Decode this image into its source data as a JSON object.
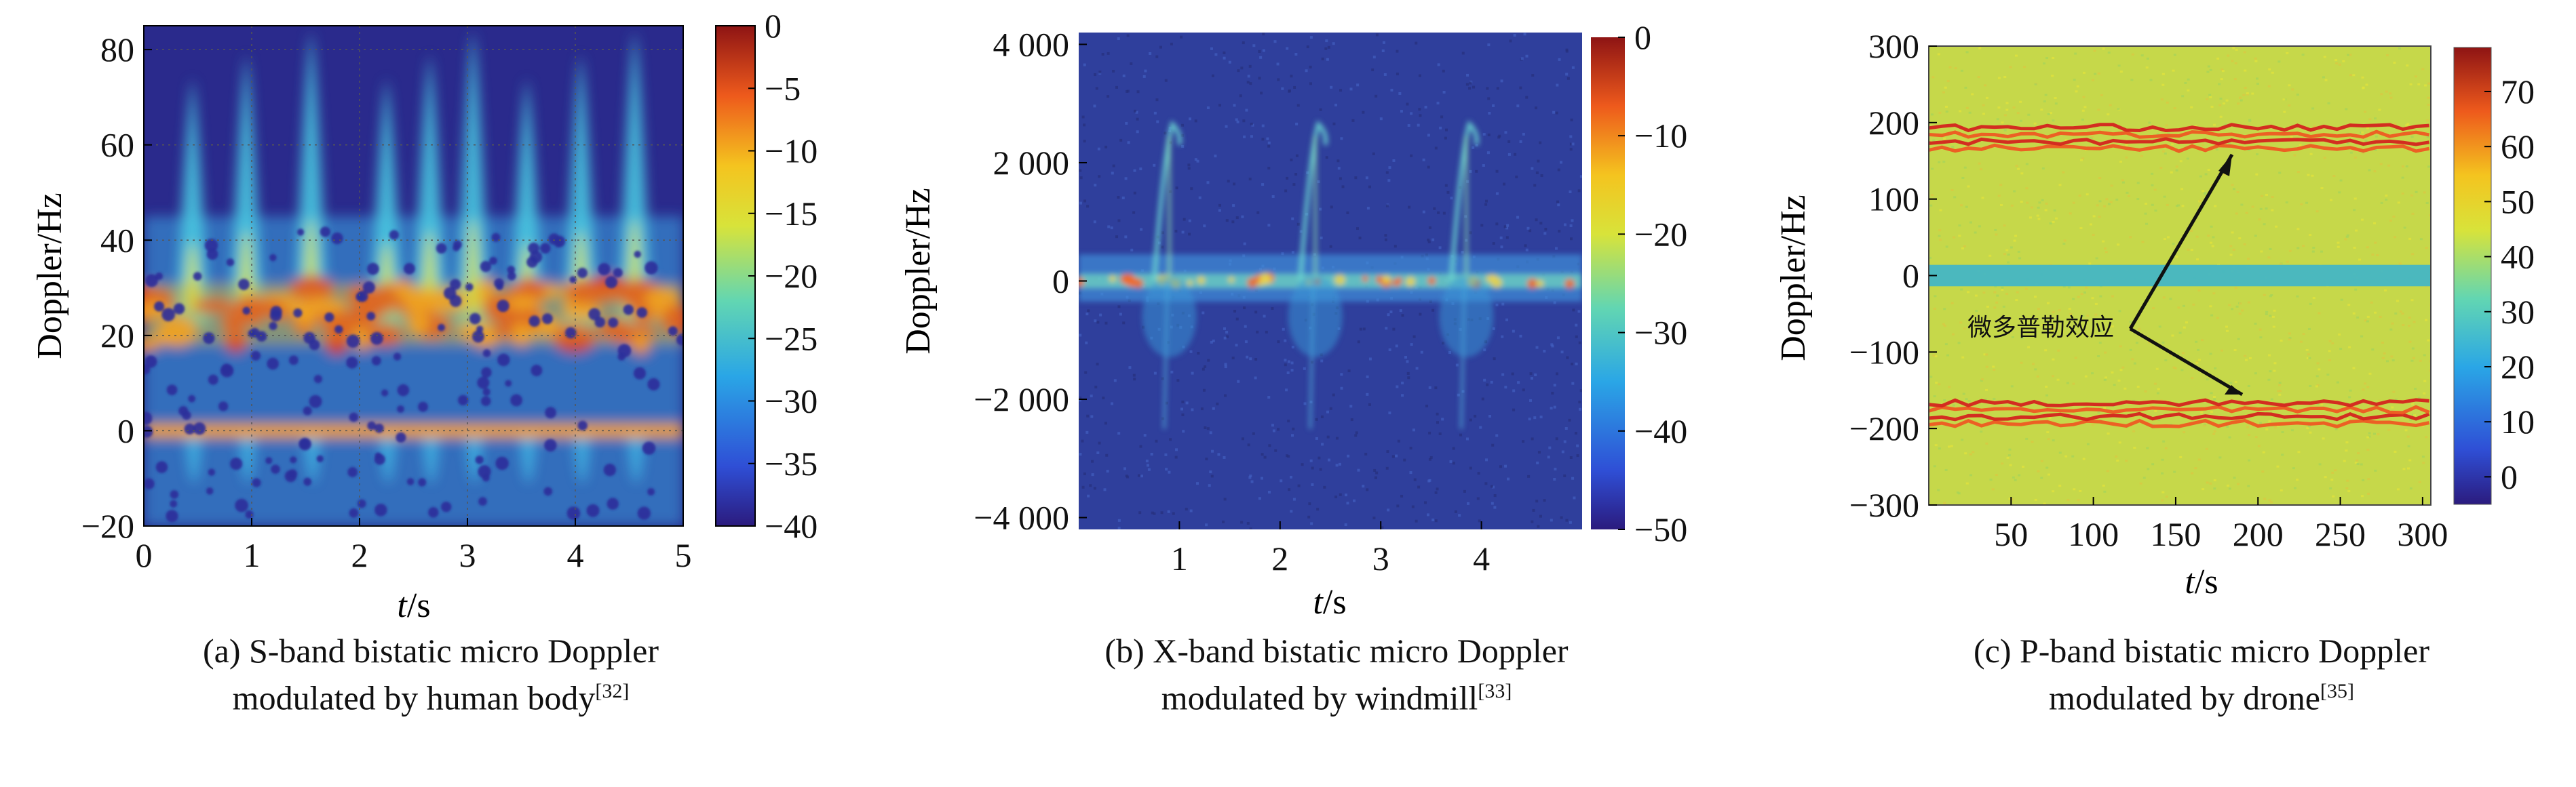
{
  "panels": [
    {
      "caption_line1": "(a) S-band bistatic micro Doppler",
      "caption_line2": "modulated by human body",
      "caption_ref": "[32]"
    },
    {
      "caption_line1": "(b) X-band bistatic micro Doppler",
      "caption_line2": "modulated by windmill",
      "caption_ref": "[33]"
    },
    {
      "caption_line1": "(c) P-band bistatic micro Doppler",
      "caption_line2": "modulated by drone",
      "caption_ref": "[35]"
    }
  ],
  "chart_data": [
    {
      "type": "heatmap",
      "xlabel_italic": "t",
      "xlabel_unit": "/s",
      "ylabel": "Doppler/Hz",
      "xlim": [
        0,
        5
      ],
      "ylim": [
        -20,
        85
      ],
      "xticks": [
        "0",
        "1",
        "2",
        "3",
        "4",
        "5"
      ],
      "yticks": [
        "−20",
        "0",
        "20",
        "40",
        "60",
        "80"
      ],
      "colorbar_ticks": [
        "0",
        "−5",
        "−10",
        "−15",
        "−20",
        "−25",
        "−30",
        "−35",
        "−40"
      ],
      "colorbar_range": [
        -40,
        0
      ],
      "colormap": "jet",
      "grid": true,
      "background_color": "#2a2a8c",
      "annotation": ""
    },
    {
      "type": "heatmap",
      "xlabel_italic": "t",
      "xlabel_unit": "/s",
      "ylabel": "Doppler/Hz",
      "xlim": [
        0,
        5
      ],
      "ylim": [
        -4200,
        4200
      ],
      "xticks": [
        "1",
        "2",
        "3",
        "4"
      ],
      "yticks": [
        "4 000",
        "2 000",
        "0",
        "−2 000",
        "−4 000"
      ],
      "colorbar_ticks": [
        "0",
        "−10",
        "−20",
        "−30",
        "−40",
        "−50"
      ],
      "colorbar_range": [
        -50,
        0
      ],
      "colormap": "jet",
      "grid": false,
      "background_color": "#2f3f9c",
      "annotation": ""
    },
    {
      "type": "heatmap",
      "xlabel_italic": "t",
      "xlabel_unit": "/s",
      "ylabel": "Doppler/Hz",
      "xlim": [
        0,
        305
      ],
      "ylim": [
        -300,
        300
      ],
      "xticks": [
        "50",
        "100",
        "150",
        "200",
        "250",
        "300"
      ],
      "yticks": [
        "300",
        "200",
        "100",
        "0",
        "−100",
        "−200",
        "−300"
      ],
      "colorbar_ticks": [
        "70",
        "60",
        "50",
        "40",
        "30",
        "20",
        "10",
        "0"
      ],
      "colorbar_range": [
        -5,
        78
      ],
      "colormap": "jet",
      "grid": false,
      "background_color": "#c6d84a",
      "annotation": "微多普勒效应"
    }
  ]
}
